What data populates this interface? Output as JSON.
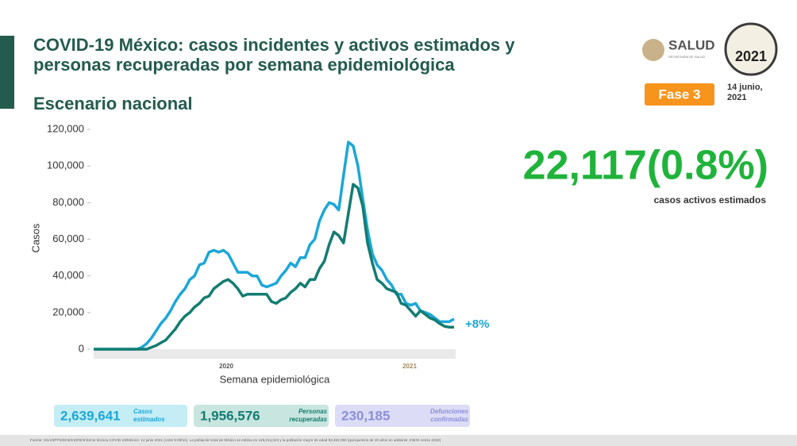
{
  "header": {
    "title_line1": "COVID-19 México: casos incidentes y activos estimados y",
    "title_line2": "personas recuperadas por semana epidemiológica",
    "subtitle": "Escenario nacional",
    "logo_salud": "SALUD",
    "logo_salud_sub": "SECRETARÍA DE SALUD",
    "logo_year": "2021",
    "phase": "Fase 3",
    "date": "14 junio, 2021"
  },
  "highlight": {
    "value": "22,117(0.8%)",
    "label": "casos activos estimados"
  },
  "chart_data": {
    "type": "line",
    "y_label": "Casos",
    "x_label": "Semana epidemiológica",
    "x_group_labels": [
      "2020",
      "2021"
    ],
    "annotation": "+8%",
    "grid": false,
    "categories": [
      null,
      null,
      null,
      null,
      null,
      null,
      null,
      null,
      null,
      null,
      null,
      null,
      null,
      null,
      null,
      null,
      null,
      null,
      null,
      null,
      null,
      null,
      null,
      null,
      null,
      null,
      null,
      null,
      null,
      null,
      null,
      null,
      null,
      null,
      null,
      null,
      null,
      null,
      null,
      null,
      null,
      null,
      null,
      null,
      null,
      null,
      null,
      null,
      null,
      null,
      null,
      null,
      null,
      null,
      null,
      null,
      null,
      null,
      null,
      null,
      null,
      null,
      null,
      null,
      null,
      null,
      null,
      null,
      null,
      null,
      null,
      null,
      null,
      null,
      null,
      null
    ],
    "series": [
      {
        "color": "#1ba7d8",
        "values": [
          0,
          0,
          0,
          0,
          0,
          0,
          0,
          0,
          0,
          0,
          1000,
          3000,
          6000,
          10000,
          14000,
          17000,
          21000,
          26000,
          30000,
          33000,
          38000,
          40000,
          46000,
          47000,
          53000,
          54000,
          53000,
          54000,
          52000,
          47000,
          42000,
          42000,
          42000,
          40000,
          40000,
          35000,
          34000,
          35000,
          36000,
          40000,
          43000,
          47000,
          45000,
          50000,
          50000,
          57000,
          60000,
          70000,
          76000,
          80000,
          79000,
          76000,
          95000,
          113000,
          111000,
          100000,
          82000,
          65000,
          52000,
          46000,
          43000,
          38000,
          35000,
          30000,
          30000,
          25000,
          24000,
          25000,
          21000,
          20000,
          19000,
          17000,
          15000,
          15000,
          15000,
          16500
        ]
      },
      {
        "color": "#137c72",
        "values": [
          0,
          0,
          0,
          0,
          0,
          0,
          0,
          0,
          0,
          0,
          0,
          0,
          1000,
          2000,
          3500,
          5000,
          8000,
          11000,
          15000,
          18000,
          20000,
          23000,
          25000,
          28000,
          29000,
          33000,
          35000,
          37000,
          38000,
          36000,
          33000,
          29000,
          30000,
          30000,
          30000,
          30000,
          30000,
          26000,
          25000,
          27000,
          28000,
          31000,
          33000,
          36000,
          34000,
          38000,
          38000,
          44000,
          48000,
          57000,
          64000,
          62000,
          58000,
          74000,
          90000,
          88000,
          78000,
          58000,
          47000,
          38000,
          36000,
          33000,
          32000,
          31000,
          25000,
          24000,
          21000,
          18000,
          21000,
          19000,
          17000,
          16000,
          14000,
          12500,
          12000,
          12000
        ]
      }
    ],
    "ylim": [
      0,
      120000
    ],
    "yticks": [
      0,
      {
        "value": 20000,
        "label": "20,000"
      },
      {
        "value": 40000,
        "label": "40,000"
      },
      {
        "value": 60000,
        "label": "60,000"
      },
      {
        "value": 80000,
        "label": "80,000"
      },
      {
        "value": 100000,
        "label": "100,000"
      },
      {
        "value": 120000,
        "label": "120,000"
      }
    ]
  },
  "totals": [
    {
      "value": "2,639,641",
      "label": "Casos estimados"
    },
    {
      "value": "1,956,576",
      "label": "Personas recuperadas"
    },
    {
      "value": "230,185",
      "label": "Defunciones confirmadas"
    }
  ],
  "footer": "Fuente: SSA/SPPS/DGE/InDRE/Informe técnico.COVID-19/México- 14 junio 2021 (corte 9:00hrs). La población total de México se estima en 126,014,024 y la población mayor de edad 93,452,050 (quinquenios de 20 años en adelante, INEGI censo 2020)"
}
